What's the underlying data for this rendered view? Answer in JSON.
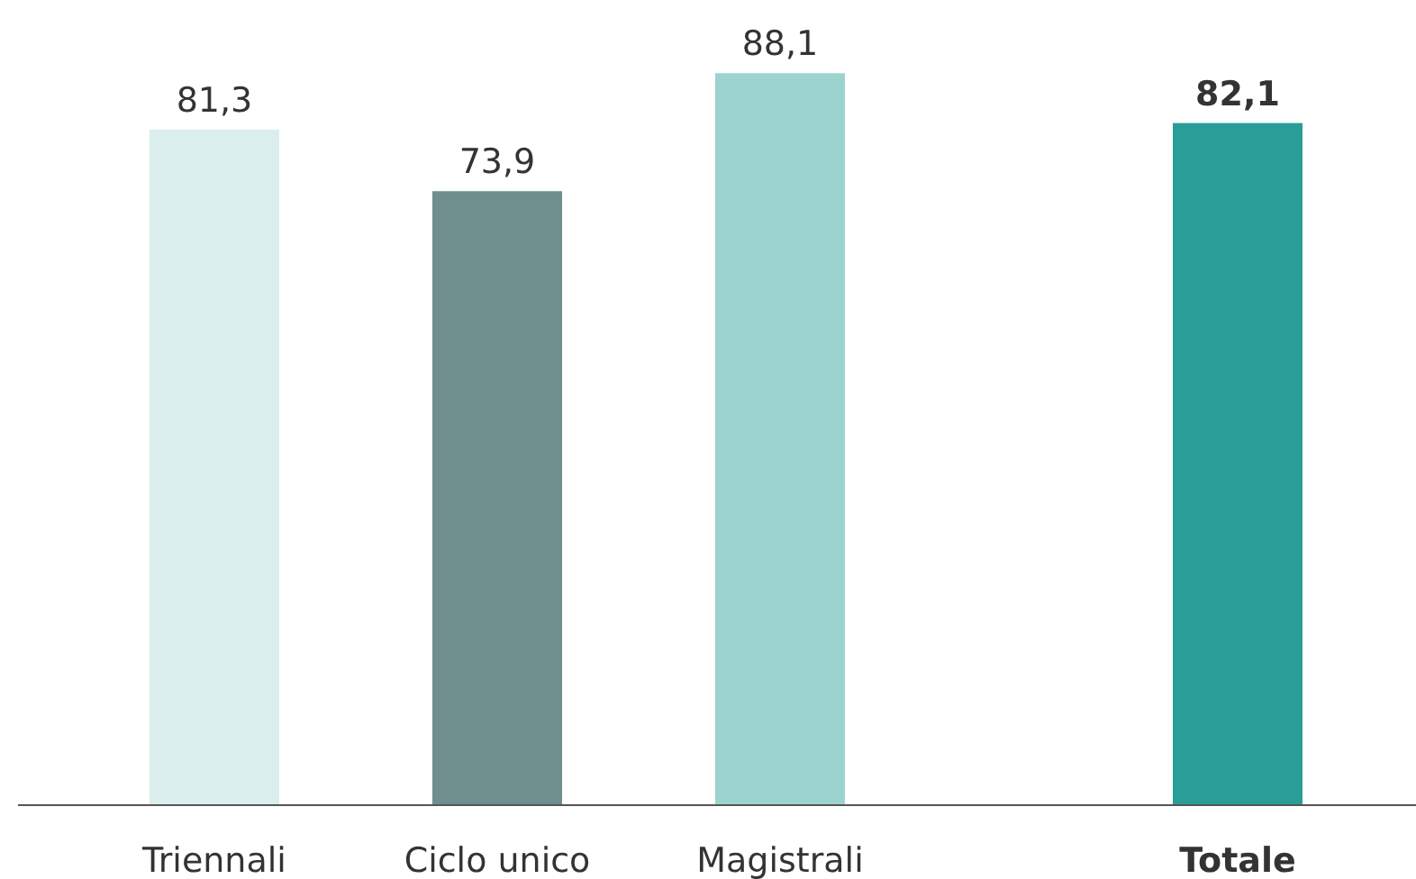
{
  "chart_data": {
    "type": "bar",
    "categories": [
      "Triennali",
      "Ciclo unico",
      "Magistrali",
      "Totale"
    ],
    "values": [
      81.3,
      73.9,
      88.1,
      82.1
    ],
    "colors": [
      "#d9eeed",
      "#6f8e8e",
      "#9dd3cf",
      "#2a9d98"
    ],
    "value_labels": [
      "81,3",
      "73,9",
      "88,1",
      "82,1"
    ]
  }
}
